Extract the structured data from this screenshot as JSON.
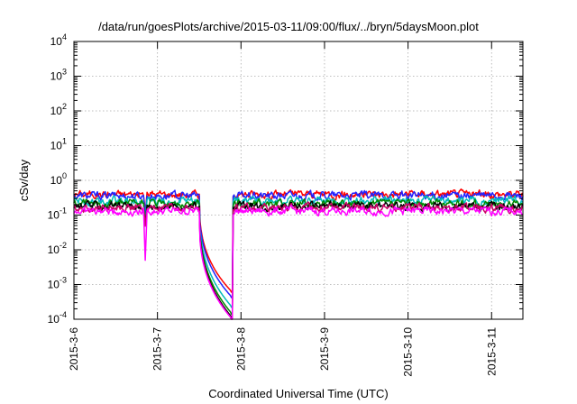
{
  "chart_data": {
    "type": "line",
    "title": "/data/run/goesPlots/archive/2015-03-11/09:00/flux/../bryn/5daysMoon.plot",
    "xlabel": "Coordinated Universal Time (UTC)",
    "ylabel": "cSv/day",
    "y_scale": "log",
    "ylim": [
      0.0001,
      10000
    ],
    "xlim": [
      "2015-03-06 00:00",
      "2015-03-11 09:00"
    ],
    "x_ticks": [
      "2015-3-6",
      "2015-3-7",
      "2015-3-8",
      "2015-3-9",
      "2015-3-10",
      "2015-3-11"
    ],
    "y_ticks": [
      {
        "base": "10",
        "exp": "-4",
        "value": 0.0001
      },
      {
        "base": "10",
        "exp": "-3",
        "value": 0.001
      },
      {
        "base": "10",
        "exp": "-2",
        "value": 0.01
      },
      {
        "base": "10",
        "exp": "-1",
        "value": 0.1
      },
      {
        "base": "10",
        "exp": "0",
        "value": 1
      },
      {
        "base": "10",
        "exp": "1",
        "value": 10
      },
      {
        "base": "10",
        "exp": "2",
        "value": 100
      },
      {
        "base": "10",
        "exp": "3",
        "value": 1000
      },
      {
        "base": "10",
        "exp": "4",
        "value": 10000
      }
    ],
    "grid": true,
    "legend": "none",
    "series": [
      {
        "color": "#ff0000",
        "baseline": 0.4,
        "dropout_min": 0.0006
      },
      {
        "color": "#2222ff",
        "baseline": 0.36,
        "dropout_min": 0.00042
      },
      {
        "color": "#00bbbb",
        "baseline": 0.26,
        "dropout_min": 0.00022
      },
      {
        "color": "#008800",
        "baseline": 0.21,
        "dropout_min": 0.00014
      },
      {
        "color": "#000000",
        "baseline": 0.18,
        "dropout_min": 0.00011
      },
      {
        "color": "#cc0066",
        "baseline": 0.16,
        "dropout_min": 0.0001
      },
      {
        "color": "#ff00ff",
        "baseline": 0.13,
        "dropout_min": 0.0001
      }
    ],
    "dropouts": [
      {
        "start": "2015-03-06 20:00",
        "end": "2015-03-06 21:00",
        "min": 0.005
      },
      {
        "start": "2015-03-07 12:00",
        "end": "2015-03-07 21:30",
        "to_floor": true
      }
    ]
  }
}
